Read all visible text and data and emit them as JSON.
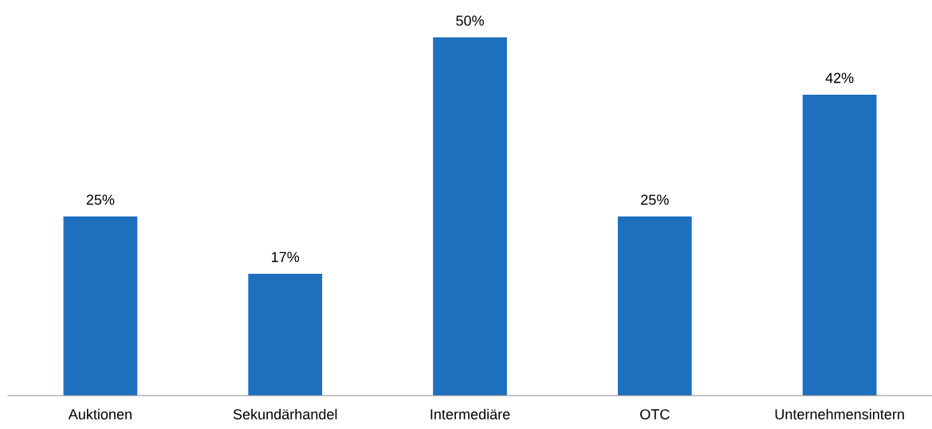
{
  "chart_data": {
    "type": "bar",
    "categories": [
      "Auktionen",
      "Sekundärhandel",
      "Intermediäre",
      "OTC",
      "Unternehmensintern"
    ],
    "values": [
      25,
      17,
      50,
      25,
      42
    ],
    "value_labels": [
      "25%",
      "17%",
      "50%",
      "25%",
      "42%"
    ],
    "color": "#1f6fbf",
    "grid": false,
    "legend": false
  }
}
